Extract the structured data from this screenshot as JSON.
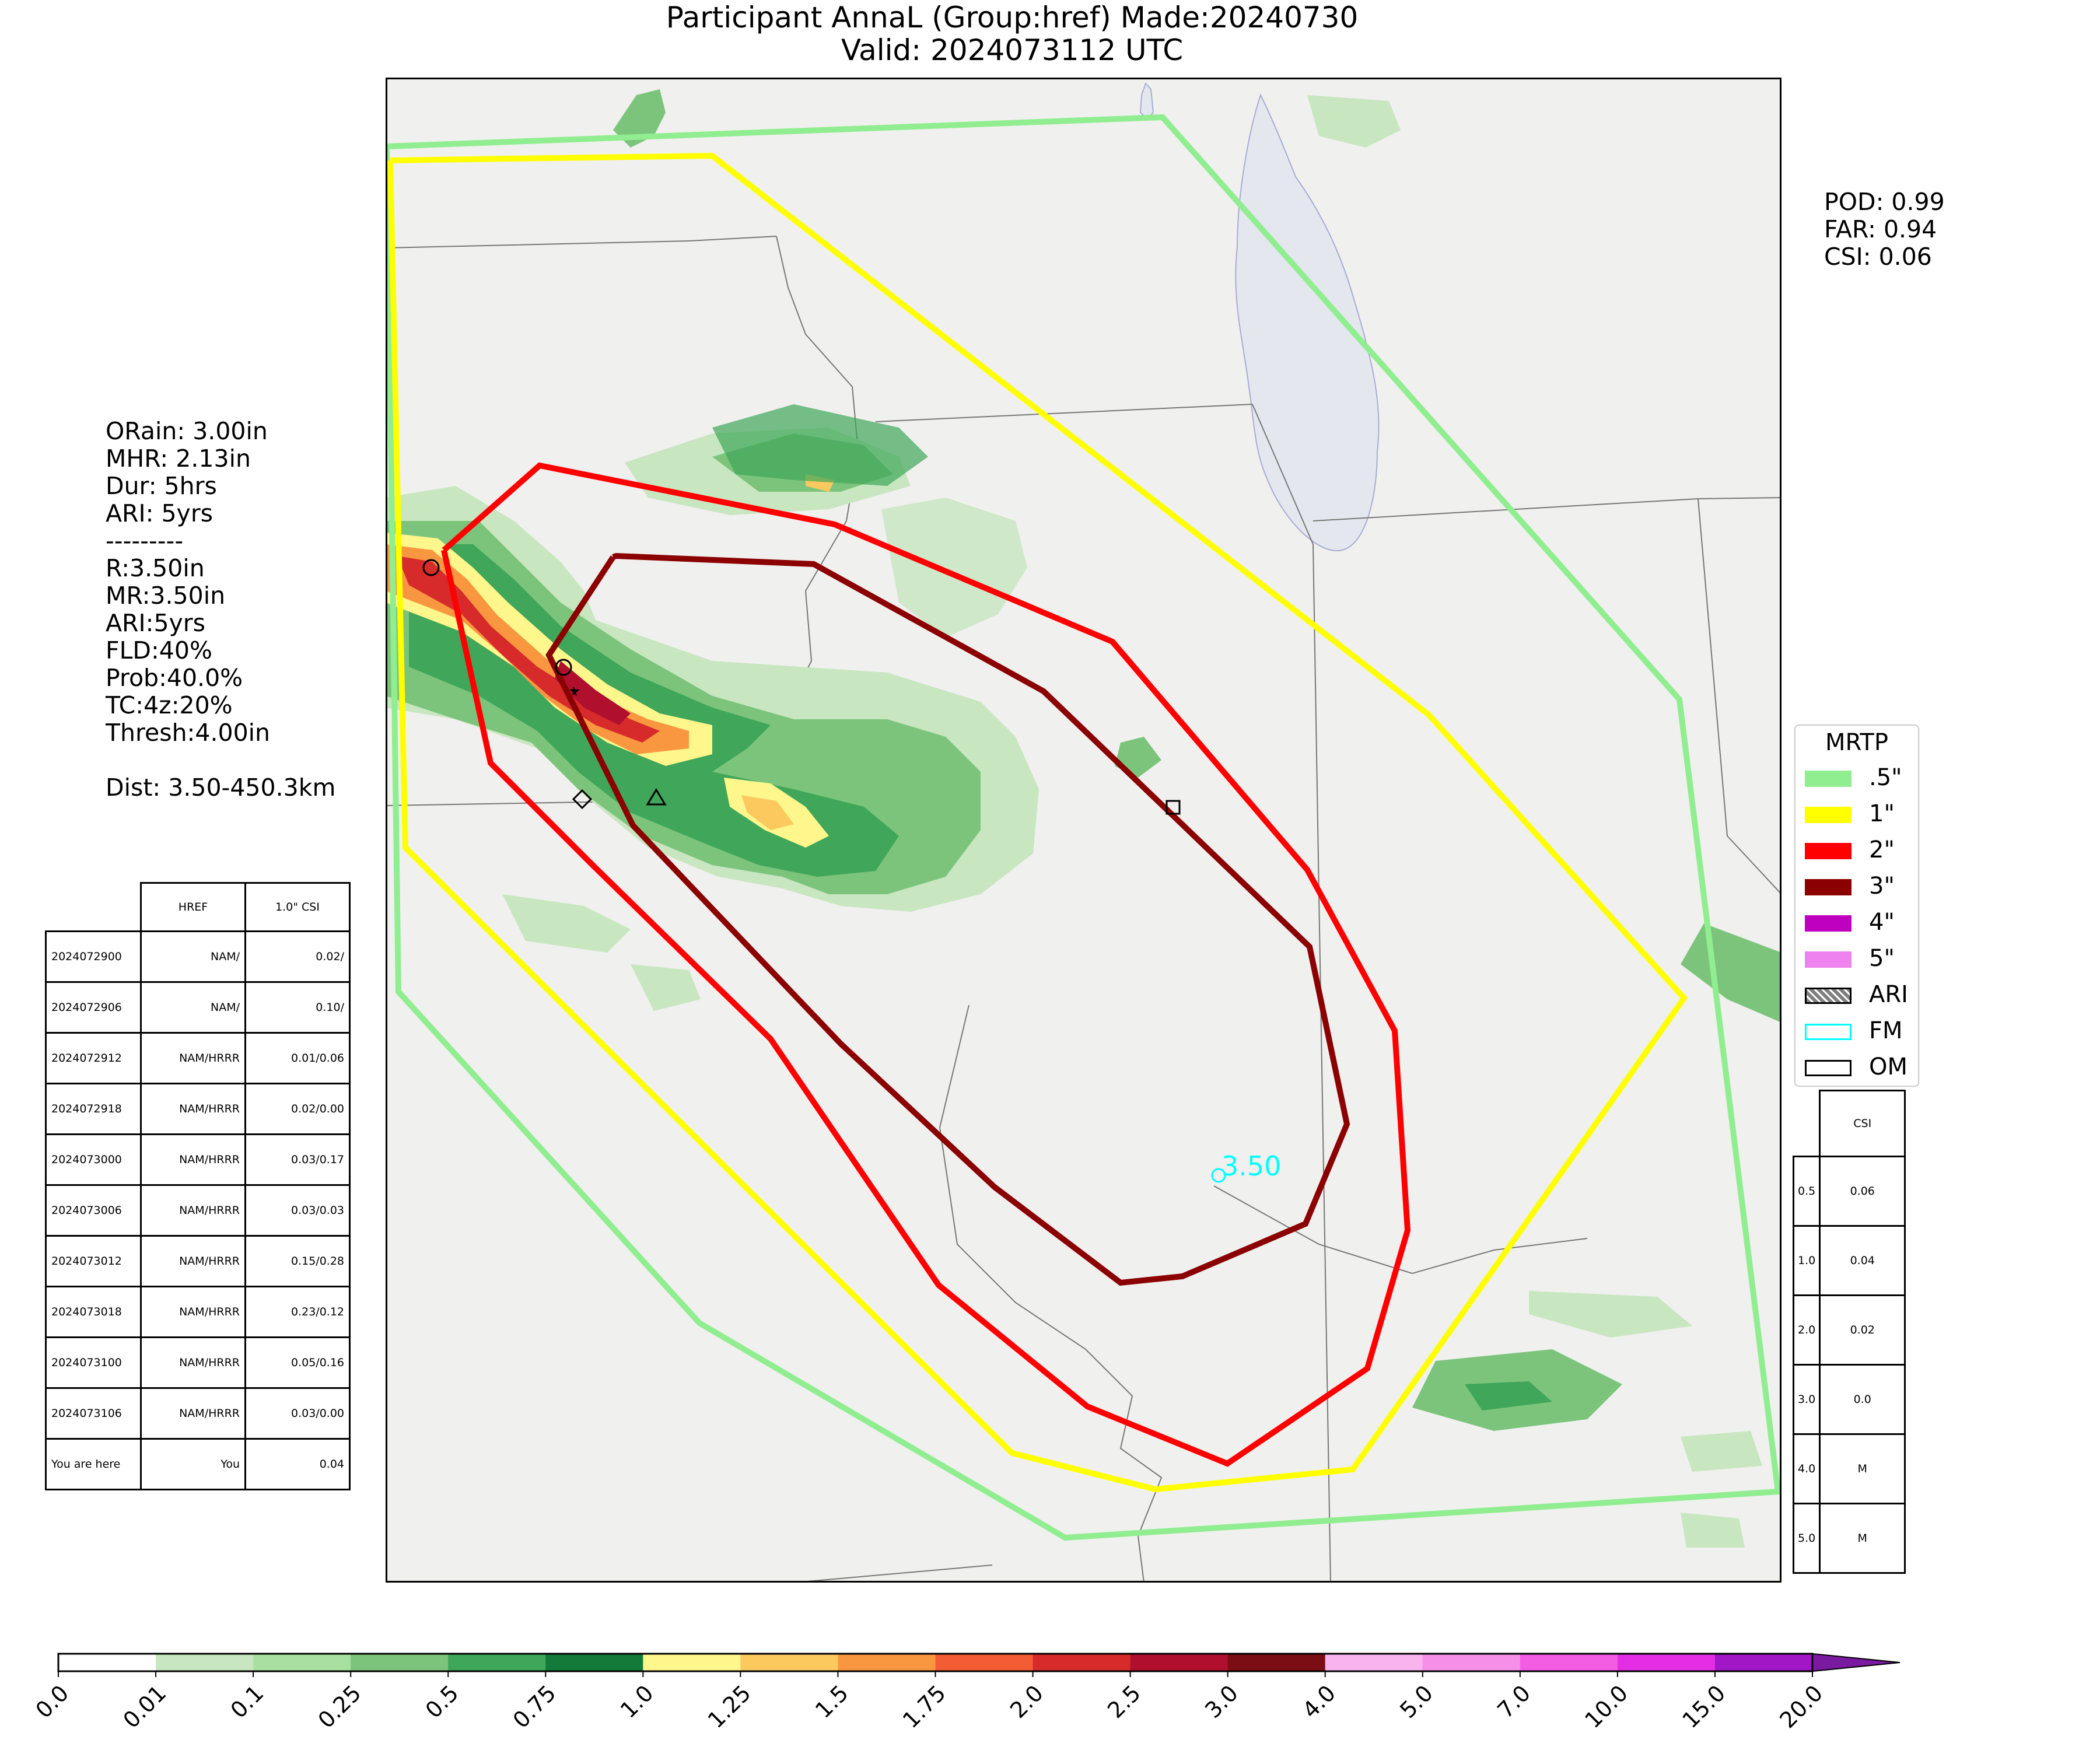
{
  "title": {
    "line1": "Participant AnnaL (Group:href) Made:20240730",
    "line2": "Valid: 2024073112 UTC"
  },
  "left_stats": [
    "ORain: 3.00in",
    "MHR: 2.13in",
    "Dur: 5hrs",
    "ARI: 5yrs",
    "---------",
    "R:3.50in",
    "MR:3.50in",
    "ARI:5yrs",
    "FLD:40%",
    "Prob:40.0%",
    "TC:4z:20%",
    "Thresh:4.00in",
    "",
    "Dist: 3.50-450.3km"
  ],
  "scores": [
    "POD: 0.99",
    "FAR: 0.94",
    "CSI: 0.06"
  ],
  "run_table": {
    "headers": [
      "",
      "HREF",
      "1.0\" CSI"
    ],
    "rows": [
      [
        "2024072900",
        "NAM/",
        "0.02/"
      ],
      [
        "2024072906",
        "NAM/",
        "0.10/"
      ],
      [
        "2024072912",
        "NAM/HRRR",
        "0.01/0.06"
      ],
      [
        "2024072918",
        "NAM/HRRR",
        "0.02/0.00"
      ],
      [
        "2024073000",
        "NAM/HRRR",
        "0.03/0.17"
      ],
      [
        "2024073006",
        "NAM/HRRR",
        "0.03/0.03"
      ],
      [
        "2024073012",
        "NAM/HRRR",
        "0.15/0.28"
      ],
      [
        "2024073018",
        "NAM/HRRR",
        "0.23/0.12"
      ],
      [
        "2024073100",
        "NAM/HRRR",
        "0.05/0.16"
      ],
      [
        "2024073106",
        "NAM/HRRR",
        "0.03/0.00"
      ],
      [
        "You are here",
        "You",
        "0.04"
      ]
    ]
  },
  "csi_table": {
    "header": "CSI",
    "rows": [
      [
        "0.5",
        "0.06"
      ],
      [
        "1.0",
        "0.04"
      ],
      [
        "2.0",
        "0.02"
      ],
      [
        "3.0",
        "0.0"
      ],
      [
        "4.0",
        "M"
      ],
      [
        "5.0",
        "M"
      ]
    ]
  },
  "legend": {
    "title": "MRTP",
    "items": [
      {
        "label": ".5\"",
        "color": "#90ee90",
        "style": "fill"
      },
      {
        "label": "1\"",
        "color": "#ffff00",
        "style": "fill"
      },
      {
        "label": "2\"",
        "color": "#ff0000",
        "style": "fill"
      },
      {
        "label": "3\"",
        "color": "#8b0000",
        "style": "fill"
      },
      {
        "label": "4\"",
        "color": "#c000c0",
        "style": "fill"
      },
      {
        "label": "5\"",
        "color": "#ee82ee",
        "style": "fill"
      },
      {
        "label": "ARI",
        "color": "#808080",
        "style": "hatch"
      },
      {
        "label": "FM",
        "color": "#00ffff",
        "style": "outline"
      },
      {
        "label": "OM",
        "color": "#000000",
        "style": "outline"
      }
    ]
  },
  "map": {
    "contour_colors": {
      "c05": "#90ee90",
      "c1": "#ffff00",
      "c2": "#ff0000",
      "c3": "#8b0000"
    },
    "flood_marker_label": "3.50",
    "flood_marker_color": "#00ffff"
  },
  "colorbar": {
    "ticks": [
      "0.0",
      "0.01",
      "0.1",
      "0.25",
      "0.5",
      "0.75",
      "1.0",
      "1.25",
      "1.5",
      "1.75",
      "2.0",
      "2.5",
      "3.0",
      "4.0",
      "5.0",
      "7.0",
      "10.0",
      "15.0",
      "20.0"
    ],
    "colors": [
      "#ffffff",
      "#c8e6c0",
      "#a8e0a0",
      "#7cc47c",
      "#3fa65a",
      "#137a3a",
      "#fff68c",
      "#fcc95e",
      "#f99640",
      "#f45c35",
      "#d72a2a",
      "#b0102e",
      "#7a0e14",
      "#f9b4f0",
      "#f58fe8",
      "#f35de4",
      "#e42ee6",
      "#a117c6"
    ],
    "extend_color": "#7a1aa0"
  }
}
